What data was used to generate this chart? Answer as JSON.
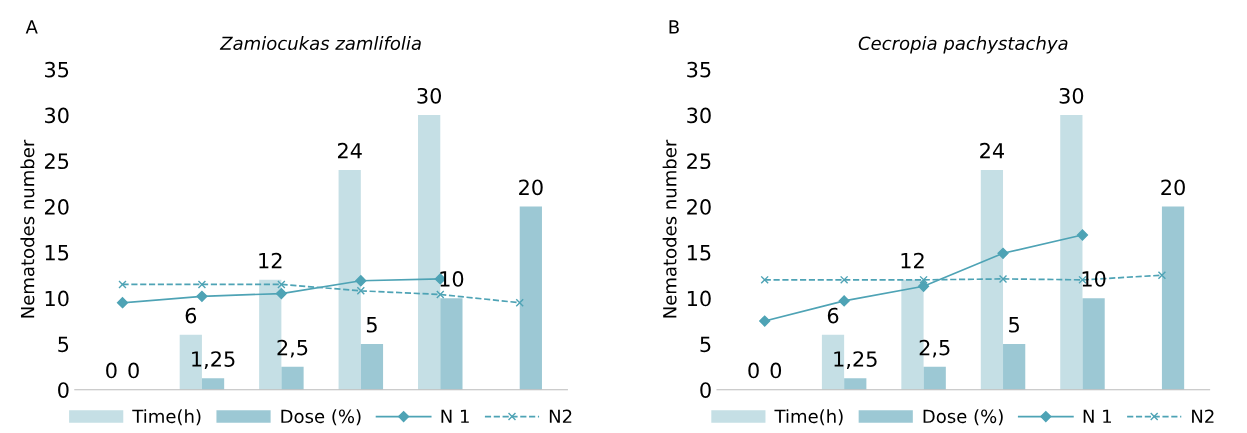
{
  "chart_data": [
    {
      "type": "bar",
      "title": "Zamiocukas zamlifolia",
      "ylabel": "Nematodes number",
      "annotations": [
        "A"
      ],
      "categories": [
        null,
        null,
        null,
        null,
        null,
        null
      ],
      "ylim": [
        0,
        35
      ],
      "yticks": [
        0,
        5,
        10,
        15,
        20,
        25,
        30,
        35
      ],
      "legend": "bottom",
      "grid": false,
      "series": [
        {
          "name": "Time(h)",
          "color": "#c5dfe5",
          "values": [
            0,
            6,
            12,
            24,
            30,
            null
          ],
          "value_labels": [
            "0",
            "6",
            "12",
            "24",
            "30",
            null
          ]
        },
        {
          "name": "Dose (%)",
          "color": "#9cc8d4",
          "values": [
            0,
            1.25,
            2.5,
            5,
            10,
            20
          ],
          "value_labels": [
            "0",
            "1,25",
            "2,5",
            "5",
            "10",
            "20"
          ]
        },
        {
          "name": "N 1",
          "type": "line",
          "color": "#4ea3b5",
          "marker": "diamond",
          "line_style": "solid",
          "values": [
            9.5,
            10.2,
            10.5,
            11.9,
            12.1,
            null
          ]
        },
        {
          "name": "N2",
          "type": "line",
          "color": "#4ea3b5",
          "marker": "cross",
          "line_style": "dashed",
          "values": [
            11.5,
            11.5,
            11.5,
            10.8,
            10.4,
            9.5
          ]
        }
      ]
    },
    {
      "type": "bar",
      "title": "Cecropia pachystachya",
      "ylabel": "Nematodes number",
      "annotations": [
        "B"
      ],
      "categories": [
        null,
        null,
        null,
        null,
        null,
        null
      ],
      "ylim": [
        0,
        35
      ],
      "yticks": [
        0,
        5,
        10,
        15,
        20,
        25,
        30,
        35
      ],
      "legend": "bottom",
      "grid": false,
      "series": [
        {
          "name": "Time(h)",
          "color": "#c5dfe5",
          "values": [
            0,
            6,
            12,
            24,
            30,
            null
          ],
          "value_labels": [
            "0",
            "6",
            "12",
            "24",
            "30",
            null
          ]
        },
        {
          "name": "Dose (%)",
          "color": "#9cc8d4",
          "values": [
            0,
            1.25,
            2.5,
            5,
            10,
            20
          ],
          "value_labels": [
            "0",
            "1,25",
            "2,5",
            "5",
            "10",
            "20"
          ]
        },
        {
          "name": "N 1",
          "type": "line",
          "color": "#4ea3b5",
          "marker": "diamond",
          "line_style": "solid",
          "values": [
            7.5,
            9.7,
            11.3,
            14.9,
            16.9,
            null
          ]
        },
        {
          "name": "N2",
          "type": "line",
          "color": "#4ea3b5",
          "marker": "cross",
          "line_style": "dashed",
          "values": [
            12,
            12,
            12,
            12.1,
            12,
            12.5
          ]
        }
      ]
    }
  ]
}
